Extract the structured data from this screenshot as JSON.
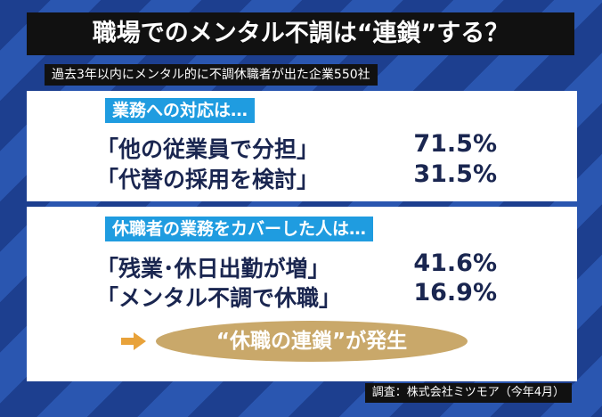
{
  "header": {
    "title": "職場でのメンタル不調は“連鎖”する？",
    "subtitle": "過去3年以内にメンタル的に不調休職者が出た企業550社"
  },
  "sections": [
    {
      "label": "業務への対応は…",
      "rows": [
        [
          "「他の従業員で分担」",
          "71.5%"
        ],
        [
          "「代替の採用を検討」",
          "31.5%"
        ]
      ]
    },
    {
      "label": "休職者の業務をカバーした人は…",
      "rows": [
        [
          "「残業･休日出勤が増」",
          "41.6%"
        ],
        [
          "「メンタル不調で休職」",
          "16.9%"
        ]
      ]
    }
  ],
  "callout": "“休職の連鎖”が発生",
  "source": "調査：株式会社ミツモア（今年4月）"
}
